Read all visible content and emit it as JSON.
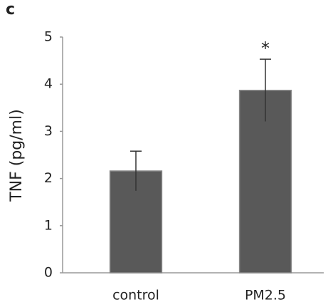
{
  "chart_data": {
    "type": "bar",
    "panel_label": "c",
    "ylabel": "TNF (pg/ml)",
    "categories": [
      "control",
      "PM2.5"
    ],
    "values": [
      2.16,
      3.87
    ],
    "errors": [
      0.42,
      0.66
    ],
    "color": "#595959",
    "ylim": [
      0,
      5
    ],
    "yticks": [
      0,
      1,
      2,
      3,
      4,
      5
    ],
    "grid": false,
    "annotations": [
      {
        "category": 1,
        "text": "*"
      }
    ]
  }
}
